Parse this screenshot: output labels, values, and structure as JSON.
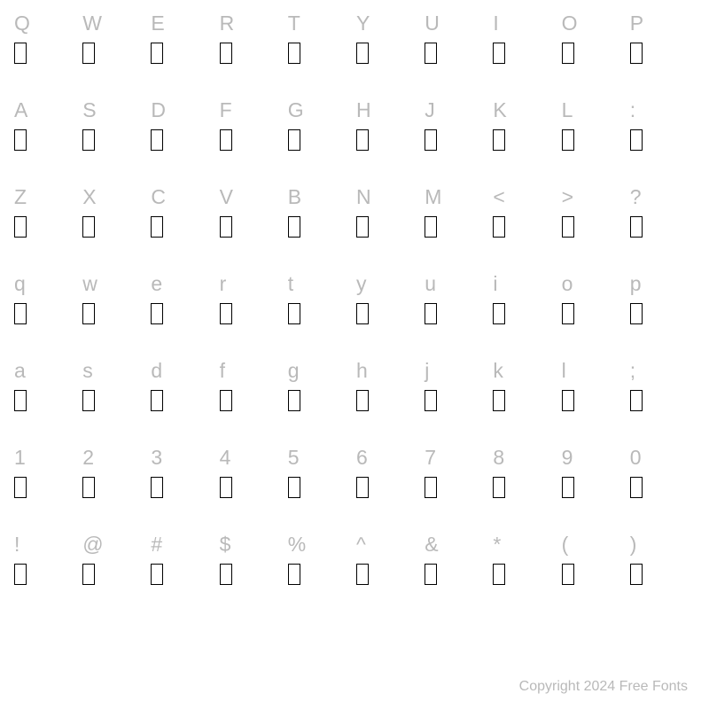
{
  "grid": {
    "rows": [
      [
        "Q",
        "W",
        "E",
        "R",
        "T",
        "Y",
        "U",
        "I",
        "O",
        "P"
      ],
      [
        "A",
        "S",
        "D",
        "F",
        "G",
        "H",
        "J",
        "K",
        "L",
        ":"
      ],
      [
        "Z",
        "X",
        "C",
        "V",
        "B",
        "N",
        "M",
        "<",
        ">",
        "?"
      ],
      [
        "q",
        "w",
        "e",
        "r",
        "t",
        "y",
        "u",
        "i",
        "o",
        "p"
      ],
      [
        "a",
        "s",
        "d",
        "f",
        "g",
        "h",
        "j",
        "k",
        "l",
        ";"
      ],
      [
        "1",
        "2",
        "3",
        "4",
        "5",
        "6",
        "7",
        "8",
        "9",
        "0"
      ],
      [
        "!",
        "@",
        "#",
        "$",
        "%",
        "^",
        "&",
        "*",
        "(",
        ")"
      ]
    ]
  },
  "style": {
    "background_color": "#ffffff",
    "char_color": "#b9b9b9",
    "glyph_border_color": "#000000",
    "char_fontsize": 23,
    "footer_fontsize": 16,
    "columns": 10,
    "glyph_box_width": 14,
    "glyph_box_height": 24,
    "glyph_border_width": 1.5
  },
  "footer": {
    "text": "Copyright 2024 Free Fonts"
  }
}
